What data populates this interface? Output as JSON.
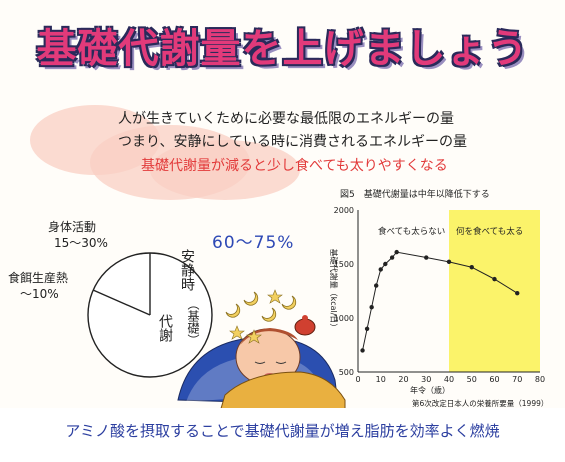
{
  "title": "基礎代謝量を上げましょう",
  "lines": {
    "line1": "人が生きていくために必要な最低限のエネルギーの量",
    "line2": "つまり、安静にしている時に消費されるエネルギーの量",
    "line3": "基礎代謝量が減ると少し食べても太りやすくなる"
  },
  "pie": {
    "activity_label": "身体活動",
    "activity_pct": "15～30%",
    "thermo_label": "食餌生産熱",
    "thermo_pct": "～10%",
    "rest_pct": "60～75%",
    "rest_label_a": "安静時",
    "rest_label_b": "（基礎）",
    "rest_label_c": "代謝"
  },
  "chart_caption": "図5　基礎代謝量は中年以降低下する",
  "chart_data": {
    "type": "line",
    "xlabel": "年令（歳）",
    "ylabel": "基礎代謝量（kcal/日）",
    "xlim": [
      0,
      80
    ],
    "ylim": [
      500,
      2000
    ],
    "x_ticks": [
      "0",
      "10",
      "20",
      "30",
      "40",
      "50",
      "60",
      "70",
      "80"
    ],
    "y_ticks": [
      "500",
      "1000",
      "1500",
      "2000"
    ],
    "x": [
      2,
      4,
      6,
      8,
      10,
      12,
      15,
      17,
      30,
      40,
      50,
      60,
      70
    ],
    "y": [
      700,
      900,
      1100,
      1300,
      1450,
      1500,
      1560,
      1610,
      1560,
      1520,
      1470,
      1360,
      1230
    ],
    "highlight_range": [
      40,
      80
    ],
    "annotations": [
      "食べても太らない",
      "何を食べても太る"
    ],
    "source": "第6次改定日本人の栄養所要量（1999）",
    "grid": false
  },
  "bottom": "アミノ酸を摂取することで基礎代謝量が増え脂肪を効率よく燃焼",
  "colors": {
    "title": "#e23a7a",
    "accent_red": "#e23a3a",
    "blue": "#2e49b5",
    "highlight": "#fbf36a"
  }
}
